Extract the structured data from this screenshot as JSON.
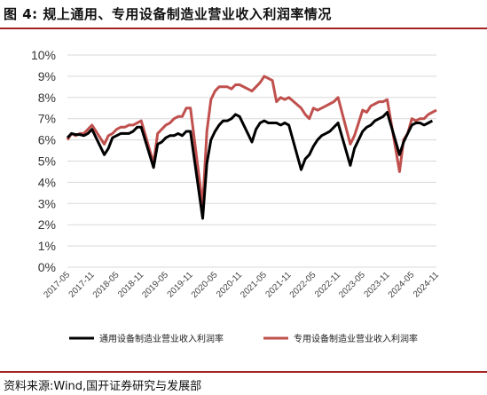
{
  "header": {
    "title": "图 4:  规上通用、专用设备制造业营业收入利润率情况"
  },
  "footer": {
    "source": "资料来源:Wind,国开证券研究与发展部"
  },
  "colors": {
    "general": "#000000",
    "special": "#c0504d",
    "accent": "#a32323"
  },
  "chart_data": {
    "type": "line",
    "title": "",
    "xlabel": "",
    "ylabel": "",
    "ylim": [
      0,
      10
    ],
    "yticks": [
      "0%",
      "1%",
      "2%",
      "3%",
      "4%",
      "5%",
      "6%",
      "7%",
      "8%",
      "9%",
      "10%"
    ],
    "x_start": "2017-05",
    "x_end": "2024-11",
    "xticks": [
      "2017-05",
      "2017-11",
      "2018-05",
      "2018-11",
      "2019-05",
      "2019-11",
      "2020-05",
      "2020-11",
      "2021-05",
      "2021-11",
      "2022-05",
      "2022-11",
      "2023-05",
      "2023-11",
      "2024-05",
      "2024-11"
    ],
    "grid": "horizontal",
    "legend": "bottom",
    "series": [
      {
        "name": "通用设备制造业营业收入利润率",
        "color": "#000000",
        "points": [
          [
            "2017-05",
            6.1
          ],
          [
            "2017-06",
            6.3
          ],
          [
            "2017-07",
            6.25
          ],
          [
            "2017-08",
            6.25
          ],
          [
            "2017-09",
            6.2
          ],
          [
            "2017-10",
            6.3
          ],
          [
            "2017-11",
            6.5
          ],
          [
            "2018-02",
            5.3
          ],
          [
            "2018-03",
            5.6
          ],
          [
            "2018-04",
            6.1
          ],
          [
            "2018-05",
            6.2
          ],
          [
            "2018-06",
            6.3
          ],
          [
            "2018-07",
            6.3
          ],
          [
            "2018-08",
            6.3
          ],
          [
            "2018-09",
            6.4
          ],
          [
            "2018-10",
            6.6
          ],
          [
            "2018-11",
            6.6
          ],
          [
            "2019-02",
            4.7
          ],
          [
            "2019-03",
            5.8
          ],
          [
            "2019-04",
            5.9
          ],
          [
            "2019-05",
            6.1
          ],
          [
            "2019-06",
            6.2
          ],
          [
            "2019-07",
            6.2
          ],
          [
            "2019-08",
            6.3
          ],
          [
            "2019-09",
            6.2
          ],
          [
            "2019-10",
            6.4
          ],
          [
            "2019-11",
            6.4
          ],
          [
            "2020-02",
            2.3
          ],
          [
            "2020-03",
            4.9
          ],
          [
            "2020-04",
            6.0
          ],
          [
            "2020-05",
            6.4
          ],
          [
            "2020-06",
            6.7
          ],
          [
            "2020-07",
            6.9
          ],
          [
            "2020-08",
            6.9
          ],
          [
            "2020-09",
            7.0
          ],
          [
            "2020-10",
            7.2
          ],
          [
            "2020-11",
            7.1
          ],
          [
            "2021-02",
            5.9
          ],
          [
            "2021-03",
            6.5
          ],
          [
            "2021-04",
            6.8
          ],
          [
            "2021-05",
            6.9
          ],
          [
            "2021-06",
            6.8
          ],
          [
            "2021-07",
            6.8
          ],
          [
            "2021-08",
            6.8
          ],
          [
            "2021-09",
            6.7
          ],
          [
            "2021-10",
            6.8
          ],
          [
            "2021-11",
            6.7
          ],
          [
            "2022-02",
            4.6
          ],
          [
            "2022-03",
            5.1
          ],
          [
            "2022-04",
            5.3
          ],
          [
            "2022-05",
            5.7
          ],
          [
            "2022-06",
            6.0
          ],
          [
            "2022-07",
            6.2
          ],
          [
            "2022-08",
            6.3
          ],
          [
            "2022-09",
            6.4
          ],
          [
            "2022-10",
            6.6
          ],
          [
            "2022-11",
            6.8
          ],
          [
            "2023-02",
            4.8
          ],
          [
            "2023-03",
            5.6
          ],
          [
            "2023-04",
            6.0
          ],
          [
            "2023-05",
            6.4
          ],
          [
            "2023-06",
            6.6
          ],
          [
            "2023-07",
            6.7
          ],
          [
            "2023-08",
            6.9
          ],
          [
            "2023-09",
            7.0
          ],
          [
            "2023-10",
            7.1
          ],
          [
            "2023-11",
            7.3
          ],
          [
            "2024-02",
            5.3
          ],
          [
            "2024-03",
            5.9
          ],
          [
            "2024-04",
            6.3
          ],
          [
            "2024-05",
            6.7
          ],
          [
            "2024-06",
            6.8
          ],
          [
            "2024-07",
            6.8
          ],
          [
            "2024-08",
            6.7
          ],
          [
            "2024-09",
            6.8
          ],
          [
            "2024-10",
            6.9
          ]
        ]
      },
      {
        "name": "专用设备制造业营业收入利润率",
        "color": "#c0504d",
        "points": [
          [
            "2017-05",
            6.0
          ],
          [
            "2017-06",
            6.3
          ],
          [
            "2017-07",
            6.2
          ],
          [
            "2017-08",
            6.3
          ],
          [
            "2017-09",
            6.3
          ],
          [
            "2017-10",
            6.5
          ],
          [
            "2017-11",
            6.7
          ],
          [
            "2018-02",
            5.8
          ],
          [
            "2018-03",
            6.2
          ],
          [
            "2018-04",
            6.3
          ],
          [
            "2018-05",
            6.5
          ],
          [
            "2018-06",
            6.6
          ],
          [
            "2018-07",
            6.6
          ],
          [
            "2018-08",
            6.7
          ],
          [
            "2018-09",
            6.7
          ],
          [
            "2018-10",
            6.8
          ],
          [
            "2018-11",
            6.9
          ],
          [
            "2019-02",
            4.9
          ],
          [
            "2019-03",
            6.3
          ],
          [
            "2019-04",
            6.5
          ],
          [
            "2019-05",
            6.7
          ],
          [
            "2019-06",
            6.8
          ],
          [
            "2019-07",
            7.0
          ],
          [
            "2019-08",
            7.1
          ],
          [
            "2019-09",
            7.1
          ],
          [
            "2019-10",
            7.5
          ],
          [
            "2019-11",
            7.5
          ],
          [
            "2020-02",
            2.9
          ],
          [
            "2020-03",
            6.4
          ],
          [
            "2020-04",
            7.9
          ],
          [
            "2020-05",
            8.3
          ],
          [
            "2020-06",
            8.5
          ],
          [
            "2020-07",
            8.5
          ],
          [
            "2020-08",
            8.5
          ],
          [
            "2020-09",
            8.4
          ],
          [
            "2020-10",
            8.6
          ],
          [
            "2020-11",
            8.6
          ],
          [
            "2021-02",
            8.3
          ],
          [
            "2021-03",
            8.5
          ],
          [
            "2021-04",
            8.7
          ],
          [
            "2021-05",
            9.0
          ],
          [
            "2021-06",
            8.9
          ],
          [
            "2021-07",
            8.8
          ],
          [
            "2021-08",
            7.8
          ],
          [
            "2021-09",
            8.0
          ],
          [
            "2021-10",
            7.9
          ],
          [
            "2021-11",
            8.0
          ],
          [
            "2022-02",
            7.5
          ],
          [
            "2022-03",
            7.2
          ],
          [
            "2022-04",
            7.0
          ],
          [
            "2022-05",
            7.5
          ],
          [
            "2022-06",
            7.4
          ],
          [
            "2022-07",
            7.5
          ],
          [
            "2022-08",
            7.6
          ],
          [
            "2022-09",
            7.7
          ],
          [
            "2022-10",
            7.8
          ],
          [
            "2022-11",
            8.0
          ],
          [
            "2023-02",
            5.8
          ],
          [
            "2023-03",
            6.2
          ],
          [
            "2023-04",
            6.8
          ],
          [
            "2023-05",
            7.4
          ],
          [
            "2023-06",
            7.3
          ],
          [
            "2023-07",
            7.6
          ],
          [
            "2023-08",
            7.7
          ],
          [
            "2023-09",
            7.8
          ],
          [
            "2023-10",
            7.8
          ],
          [
            "2023-11",
            7.9
          ],
          [
            "2024-02",
            4.5
          ],
          [
            "2024-03",
            6.0
          ],
          [
            "2024-04",
            6.3
          ],
          [
            "2024-05",
            7.0
          ],
          [
            "2024-06",
            6.9
          ],
          [
            "2024-07",
            7.0
          ],
          [
            "2024-08",
            7.0
          ],
          [
            "2024-09",
            7.2
          ],
          [
            "2024-10",
            7.3
          ],
          [
            "2024-11",
            7.4
          ]
        ]
      }
    ]
  }
}
